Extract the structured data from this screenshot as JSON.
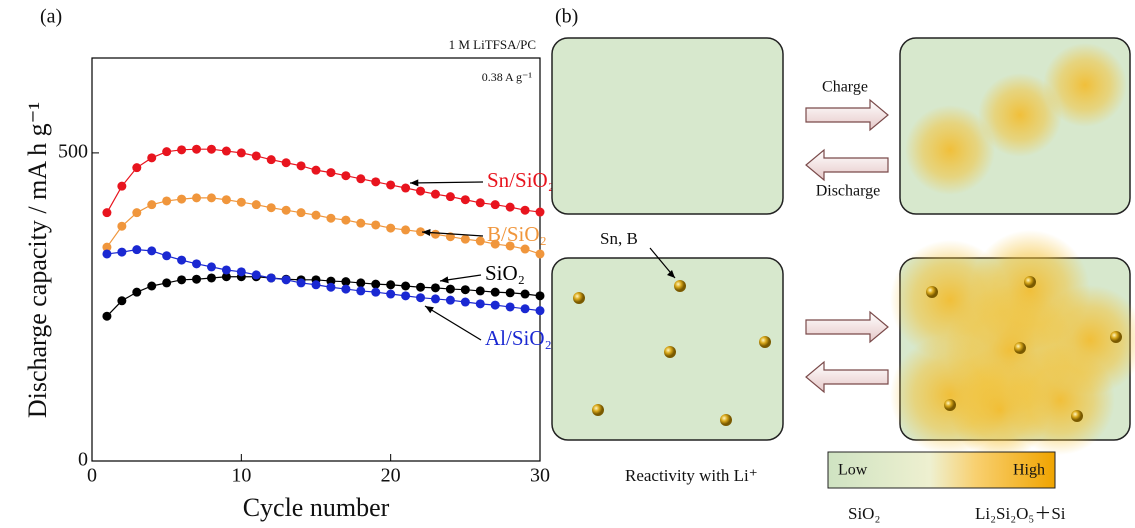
{
  "chart_data": {
    "type": "line",
    "panel_label": "(a)",
    "annotations": [
      "1 M LiTFSA/PC",
      "0.38 A g⁻¹"
    ],
    "xlabel": "Cycle number",
    "ylabel": "Discharge capacity / mA h g⁻¹",
    "x": [
      1,
      2,
      3,
      4,
      5,
      6,
      7,
      8,
      9,
      10,
      11,
      12,
      13,
      14,
      15,
      16,
      17,
      18,
      19,
      20,
      21,
      22,
      23,
      24,
      25,
      26,
      27,
      28,
      29,
      30
    ],
    "xlim": [
      0,
      30
    ],
    "xticks": [
      0,
      10,
      20,
      30
    ],
    "ylim": [
      0,
      654
    ],
    "yticks": [
      0,
      500
    ],
    "series": [
      {
        "name": "Sn/SiO₂",
        "color": "#e8141e",
        "values": [
          403,
          446,
          476,
          492,
          502,
          505,
          506,
          506,
          503,
          500,
          495,
          489,
          484,
          479,
          472,
          468,
          463,
          458,
          453,
          448,
          443,
          438,
          433,
          429,
          424,
          419,
          416,
          412,
          407,
          404
        ]
      },
      {
        "name": "B/SiO₂",
        "color": "#f0963c",
        "values": [
          347,
          381,
          403,
          416,
          422,
          425,
          427,
          427,
          424,
          420,
          416,
          411,
          407,
          403,
          399,
          394,
          391,
          386,
          383,
          378,
          375,
          372,
          368,
          364,
          360,
          357,
          352,
          349,
          344,
          336
        ]
      },
      {
        "name": "SiO₂",
        "color": "#000000",
        "values": [
          235,
          260,
          274,
          284,
          289,
          294,
          295,
          297,
          299,
          299,
          299,
          297,
          295,
          294,
          294,
          292,
          291,
          289,
          287,
          286,
          284,
          282,
          281,
          279,
          278,
          276,
          274,
          273,
          271,
          268
        ]
      },
      {
        "name": "Al/SiO₂",
        "color": "#1a28d2",
        "values": [
          336,
          339,
          343,
          341,
          333,
          326,
          320,
          315,
          310,
          307,
          302,
          297,
          294,
          289,
          286,
          282,
          279,
          276,
          274,
          271,
          268,
          265,
          263,
          261,
          258,
          255,
          253,
          250,
          247,
          244
        ]
      }
    ]
  },
  "panel_b": {
    "panel_label": "(b)",
    "charge": "Charge",
    "discharge": "Discharge",
    "dopant": "Sn, B",
    "reactivity": "Reactivity with Li⁺",
    "low": "Low",
    "high": "High",
    "left_product": "SiO₂",
    "right_product": "Li₂Si₂O₅＋Si"
  }
}
